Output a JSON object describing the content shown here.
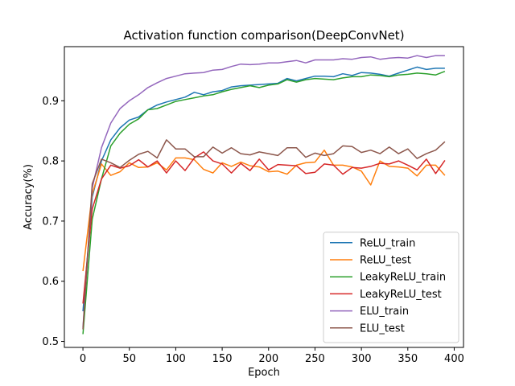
{
  "chart_data": {
    "type": "line",
    "title": "Activation function comparison(DeepConvNet)",
    "xlabel": "Epoch",
    "ylabel": "Accuracy(%)",
    "xlim": [
      -20,
      410
    ],
    "ylim": [
      0.49,
      0.99
    ],
    "xticks": [
      0,
      50,
      100,
      150,
      200,
      250,
      300,
      350,
      400
    ],
    "yticks": [
      0.5,
      0.6,
      0.7,
      0.8,
      0.9
    ],
    "ytick_labels": [
      "0.5",
      "0.6",
      "0.7",
      "0.8",
      "0.9"
    ],
    "grid": false,
    "legend_position": "lower-right",
    "x": [
      0,
      10,
      20,
      30,
      40,
      50,
      60,
      70,
      80,
      90,
      100,
      110,
      120,
      130,
      140,
      150,
      160,
      170,
      180,
      190,
      200,
      210,
      220,
      230,
      240,
      250,
      260,
      270,
      280,
      290,
      300,
      310,
      320,
      330,
      340,
      350,
      360,
      370,
      380,
      390
    ],
    "series": [
      {
        "name": "ReLU_train",
        "color": "#1f77b4",
        "values": [
          0.55,
          0.74,
          0.8,
          0.835,
          0.855,
          0.868,
          0.873,
          0.885,
          0.893,
          0.898,
          0.902,
          0.906,
          0.914,
          0.91,
          0.915,
          0.917,
          0.923,
          0.925,
          0.926,
          0.927,
          0.928,
          0.929,
          0.937,
          0.933,
          0.937,
          0.941,
          0.941,
          0.94,
          0.945,
          0.942,
          0.947,
          0.946,
          0.944,
          0.941,
          0.946,
          0.951,
          0.956,
          0.952,
          0.954,
          0.954
        ]
      },
      {
        "name": "ReLU_test",
        "color": "#ff7f0e",
        "values": [
          0.617,
          0.745,
          0.795,
          0.776,
          0.782,
          0.797,
          0.789,
          0.79,
          0.797,
          0.785,
          0.805,
          0.805,
          0.802,
          0.786,
          0.78,
          0.797,
          0.791,
          0.798,
          0.792,
          0.79,
          0.782,
          0.783,
          0.778,
          0.793,
          0.797,
          0.798,
          0.818,
          0.793,
          0.793,
          0.79,
          0.783,
          0.76,
          0.8,
          0.791,
          0.79,
          0.788,
          0.775,
          0.793,
          0.793,
          0.776
        ]
      },
      {
        "name": "LeakyReLU_train",
        "color": "#2ca02c",
        "values": [
          0.512,
          0.703,
          0.77,
          0.825,
          0.846,
          0.861,
          0.87,
          0.885,
          0.887,
          0.893,
          0.899,
          0.902,
          0.905,
          0.908,
          0.91,
          0.915,
          0.919,
          0.922,
          0.925,
          0.922,
          0.926,
          0.928,
          0.935,
          0.931,
          0.935,
          0.937,
          0.936,
          0.935,
          0.938,
          0.94,
          0.94,
          0.943,
          0.942,
          0.94,
          0.943,
          0.944,
          0.946,
          0.945,
          0.943,
          0.949
        ]
      },
      {
        "name": "LeakyReLU_test",
        "color": "#d62728",
        "values": [
          0.563,
          0.72,
          0.77,
          0.793,
          0.788,
          0.792,
          0.802,
          0.79,
          0.8,
          0.78,
          0.8,
          0.784,
          0.805,
          0.815,
          0.8,
          0.795,
          0.78,
          0.796,
          0.784,
          0.803,
          0.785,
          0.794,
          0.793,
          0.792,
          0.779,
          0.781,
          0.795,
          0.793,
          0.778,
          0.789,
          0.788,
          0.791,
          0.796,
          0.795,
          0.8,
          0.793,
          0.785,
          0.803,
          0.779,
          0.801
        ]
      },
      {
        "name": "ELU_train",
        "color": "#9467bd",
        "values": [
          0.523,
          0.755,
          0.822,
          0.863,
          0.887,
          0.9,
          0.91,
          0.922,
          0.93,
          0.937,
          0.941,
          0.945,
          0.946,
          0.947,
          0.951,
          0.952,
          0.957,
          0.961,
          0.96,
          0.961,
          0.963,
          0.963,
          0.965,
          0.967,
          0.963,
          0.968,
          0.968,
          0.968,
          0.97,
          0.969,
          0.972,
          0.973,
          0.969,
          0.971,
          0.972,
          0.971,
          0.975,
          0.972,
          0.975,
          0.975
        ]
      },
      {
        "name": "ELU_test",
        "color": "#8c564b",
        "values": [
          0.52,
          0.762,
          0.803,
          0.797,
          0.789,
          0.801,
          0.811,
          0.816,
          0.805,
          0.835,
          0.82,
          0.82,
          0.807,
          0.807,
          0.823,
          0.813,
          0.822,
          0.812,
          0.81,
          0.815,
          0.812,
          0.809,
          0.822,
          0.822,
          0.806,
          0.813,
          0.809,
          0.812,
          0.825,
          0.824,
          0.814,
          0.818,
          0.812,
          0.823,
          0.812,
          0.82,
          0.804,
          0.812,
          0.818,
          0.832
        ]
      }
    ]
  }
}
